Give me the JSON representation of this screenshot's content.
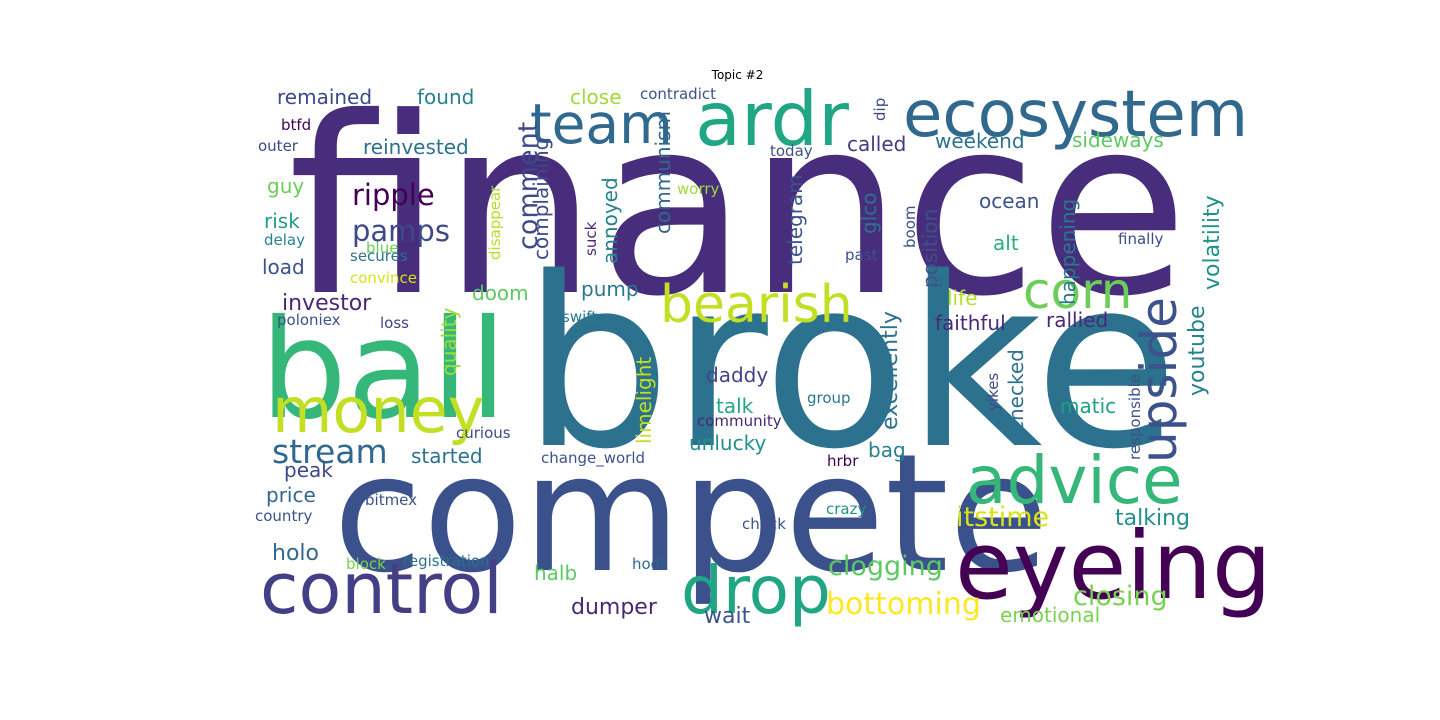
{
  "title": "Topic #2",
  "words": [
    {
      "text": "finance",
      "color": "#472d7b"
    },
    {
      "text": "broke",
      "color": "#2c728e"
    },
    {
      "text": "compete",
      "color": "#3b518b"
    },
    {
      "text": "ball",
      "color": "#35b779"
    },
    {
      "text": "control",
      "color": "#433e85"
    },
    {
      "text": "eyeing",
      "color": "#440154"
    },
    {
      "text": "ardr",
      "color": "#21a685"
    },
    {
      "text": "ecosystem",
      "color": "#31688e"
    },
    {
      "text": "money",
      "color": "#c2df23"
    },
    {
      "text": "team",
      "color": "#31688e"
    },
    {
      "text": "advice",
      "color": "#35b779"
    },
    {
      "text": "drop",
      "color": "#21a685"
    },
    {
      "text": "bearish",
      "color": "#c2df23"
    },
    {
      "text": "corn",
      "color": "#6ccd5a"
    },
    {
      "text": "upside",
      "color": "#3b528b"
    },
    {
      "text": "stream",
      "color": "#31688e"
    },
    {
      "text": "bottoming",
      "color": "#fde725"
    },
    {
      "text": "ripple",
      "color": "#440154"
    },
    {
      "text": "pamps",
      "color": "#3e4989"
    },
    {
      "text": "clogging",
      "color": "#5ec962"
    },
    {
      "text": "itstime",
      "color": "#d8e219"
    },
    {
      "text": "closing",
      "color": "#7ad151"
    },
    {
      "text": "comment",
      "color": "#3e4989"
    },
    {
      "text": "talking",
      "color": "#21918c"
    },
    {
      "text": "holo",
      "color": "#31688e"
    },
    {
      "text": "dumper",
      "color": "#482878"
    },
    {
      "text": "investor",
      "color": "#482878"
    },
    {
      "text": "wait",
      "color": "#3b528b"
    },
    {
      "text": "volatility",
      "color": "#21918c"
    },
    {
      "text": "youtube",
      "color": "#26828e"
    },
    {
      "text": "excellently",
      "color": "#2c728e"
    },
    {
      "text": "faithful",
      "color": "#482878"
    },
    {
      "text": "emotional",
      "color": "#7ad151"
    },
    {
      "text": "remained",
      "color": "#3e4989"
    },
    {
      "text": "found",
      "color": "#26828e"
    },
    {
      "text": "close",
      "color": "#a0da39"
    },
    {
      "text": "called",
      "color": "#443983"
    },
    {
      "text": "weekend",
      "color": "#2c728e"
    },
    {
      "text": "sideways",
      "color": "#5ec962"
    },
    {
      "text": "reinvested",
      "color": "#2c728e"
    },
    {
      "text": "complaining",
      "color": "#3e4989"
    },
    {
      "text": "communism",
      "color": "#31688e"
    },
    {
      "text": "telegram",
      "color": "#3b528b"
    },
    {
      "text": "position",
      "color": "#3b528b"
    },
    {
      "text": "happening",
      "color": "#2a788e"
    },
    {
      "text": "ocean",
      "color": "#3b528b"
    },
    {
      "text": "alt",
      "color": "#28ae80"
    },
    {
      "text": "guy",
      "color": "#6ccd5a"
    },
    {
      "text": "risk",
      "color": "#1f9e89"
    },
    {
      "text": "load",
      "color": "#3b528b"
    },
    {
      "text": "pump",
      "color": "#2a788e"
    },
    {
      "text": "annoyed",
      "color": "#26828e"
    },
    {
      "text": "doom",
      "color": "#5ec962"
    },
    {
      "text": "life",
      "color": "#b5de2b"
    },
    {
      "text": "rallied",
      "color": "#482878"
    },
    {
      "text": "quality",
      "color": "#a0da39"
    },
    {
      "text": "limelight",
      "color": "#c2df23"
    },
    {
      "text": "daddy",
      "color": "#414487"
    },
    {
      "text": "talk",
      "color": "#22a884"
    },
    {
      "text": "checked",
      "color": "#2c728e"
    },
    {
      "text": "matic",
      "color": "#1fa187"
    },
    {
      "text": "unlucky",
      "color": "#21918c"
    },
    {
      "text": "bag",
      "color": "#26828e"
    },
    {
      "text": "started",
      "color": "#2c728e"
    },
    {
      "text": "peak",
      "color": "#3e4989"
    },
    {
      "text": "price",
      "color": "#31688e"
    },
    {
      "text": "halb",
      "color": "#5ec962"
    },
    {
      "text": "glco",
      "color": "#2c728e"
    },
    {
      "text": "contradict",
      "color": "#3b528b"
    },
    {
      "text": "dip",
      "color": "#3e4989"
    },
    {
      "text": "btfd",
      "color": "#440154"
    },
    {
      "text": "outer",
      "color": "#3e4989"
    },
    {
      "text": "today",
      "color": "#3b528b"
    },
    {
      "text": "worry",
      "color": "#a0da39"
    },
    {
      "text": "disappear",
      "color": "#b5de2b"
    },
    {
      "text": "suck",
      "color": "#482878"
    },
    {
      "text": "boom",
      "color": "#3b528b"
    },
    {
      "text": "delay",
      "color": "#26828e"
    },
    {
      "text": "blue",
      "color": "#6ccd5a"
    },
    {
      "text": "secures",
      "color": "#2c728e"
    },
    {
      "text": "convince",
      "color": "#d8e219"
    },
    {
      "text": "past",
      "color": "#3b528b"
    },
    {
      "text": "finally",
      "color": "#3e4989"
    },
    {
      "text": "poloniex",
      "color": "#3b528b"
    },
    {
      "text": "loss",
      "color": "#414487"
    },
    {
      "text": "swift",
      "color": "#2a788e"
    },
    {
      "text": "curious",
      "color": "#3e4989"
    },
    {
      "text": "community",
      "color": "#482878"
    },
    {
      "text": "group",
      "color": "#2a788e"
    },
    {
      "text": "yikes",
      "color": "#3e4989"
    },
    {
      "text": "responsible",
      "color": "#3b528b"
    },
    {
      "text": "change_world",
      "color": "#3b528b"
    },
    {
      "text": "hrbr",
      "color": "#440154"
    },
    {
      "text": "bitmex",
      "color": "#3b528b"
    },
    {
      "text": "country",
      "color": "#3b528b"
    },
    {
      "text": "check",
      "color": "#3b528b"
    },
    {
      "text": "crazy",
      "color": "#21918c"
    },
    {
      "text": "block",
      "color": "#7ad151"
    },
    {
      "text": "registration",
      "color": "#2c728e"
    },
    {
      "text": "hodl",
      "color": "#31688e"
    }
  ]
}
